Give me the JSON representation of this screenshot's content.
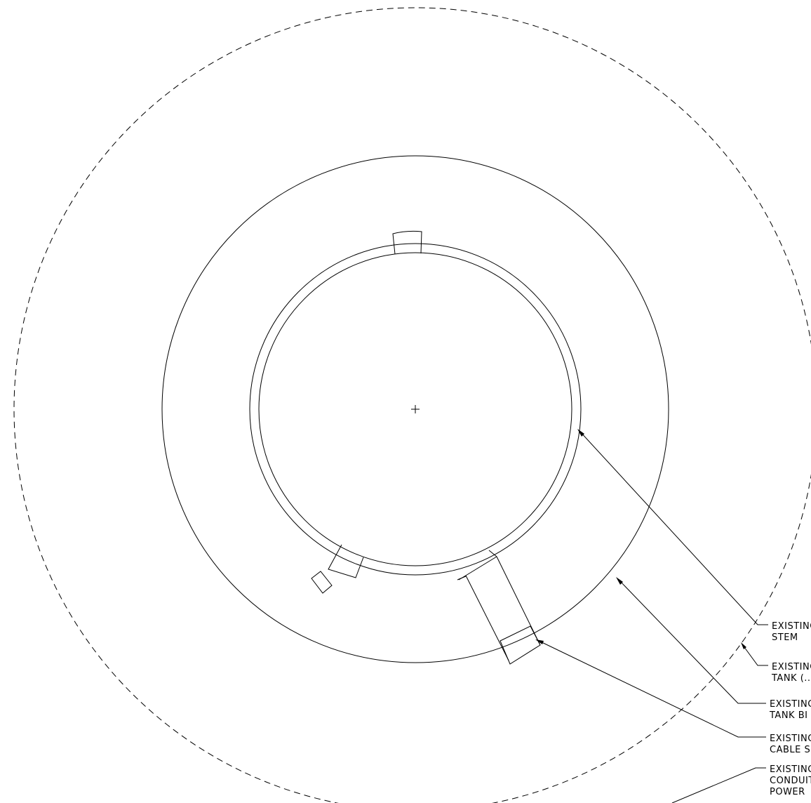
{
  "callouts": [
    {
      "line1": "EXISTING",
      "line2": "STEM"
    },
    {
      "line1": "EXISTING",
      "line2": "TANK (..."
    },
    {
      "line1": "EXISTING",
      "line2": "TANK BI"
    },
    {
      "line1": "EXISTING",
      "line2": "CABLE S"
    },
    {
      "line1": "EXISTING",
      "line2": "CONDUIT",
      "line3": "POWER"
    }
  ]
}
